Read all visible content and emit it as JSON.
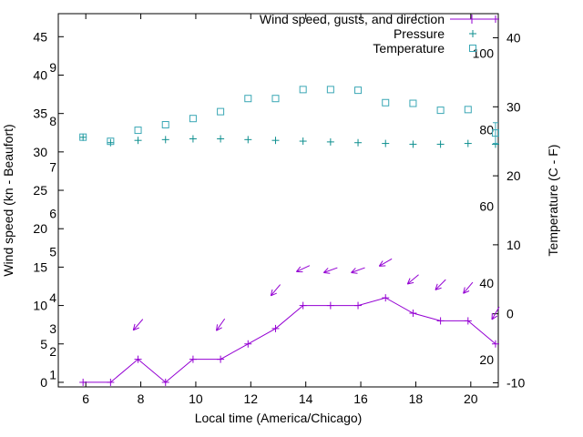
{
  "chart_data": {
    "type": "line",
    "title": "",
    "xlabel": "Local time (America/Chicago)",
    "ylabel_left": "Wind speed (kn - Beaufort)",
    "ylabel_right": "Temperature (C - F)",
    "xlim": [
      5,
      21
    ],
    "ylim_left": [
      -0.6,
      48.0
    ],
    "ylim_right": [
      -10.6,
      43.5
    ],
    "x_ticks": [
      6,
      8,
      10,
      12,
      14,
      16,
      18,
      20
    ],
    "y_ticks_left": [
      0,
      5,
      10,
      15,
      20,
      25,
      30,
      35,
      40,
      45
    ],
    "y_ticks_right": [
      -10,
      0,
      10,
      20,
      30,
      40
    ],
    "beaufort_labels": [
      {
        "text": "1",
        "kn": 1
      },
      {
        "text": "2",
        "kn": 4
      },
      {
        "text": "3",
        "kn": 7
      },
      {
        "text": "4",
        "kn": 11
      },
      {
        "text": "5",
        "kn": 17
      },
      {
        "text": "6",
        "kn": 22
      },
      {
        "text": "7",
        "kn": 28
      },
      {
        "text": "8",
        "kn": 34
      },
      {
        "text": "9",
        "kn": 41
      }
    ],
    "fahrenheit_labels": [
      {
        "text": "20",
        "c": -6.67
      },
      {
        "text": "40",
        "c": 4.44
      },
      {
        "text": "60",
        "c": 15.56
      },
      {
        "text": "80",
        "c": 26.67
      },
      {
        "text": "100",
        "c": 37.78
      }
    ],
    "legend": [
      {
        "label": "Wind speed, gusts, and direction",
        "series": "wind"
      },
      {
        "label": "Pressure",
        "series": "pressure"
      },
      {
        "label": "Temperature",
        "series": "temperature"
      }
    ],
    "series": {
      "wind_speed": {
        "axis": "left",
        "x": [
          5.9,
          6.9,
          7.9,
          8.9,
          9.9,
          10.9,
          11.9,
          12.9,
          13.9,
          14.9,
          15.9,
          16.9,
          17.9,
          18.9,
          19.9,
          20.9
        ],
        "y": [
          0,
          0,
          3,
          0,
          3,
          3,
          5,
          7,
          10,
          10,
          10,
          11,
          9,
          8,
          8,
          5
        ]
      },
      "gusts": {
        "axis": "left",
        "x": [
          7.9,
          10.9,
          12.9,
          13.9,
          14.9,
          15.9,
          16.9,
          17.9,
          18.9,
          19.9,
          20.9
        ],
        "y": [
          7.5,
          7.5,
          12,
          14.8,
          14.6,
          14.6,
          15.6,
          13.4,
          12.7,
          12.3,
          9
        ],
        "angle_deg": [
          229,
          235,
          230,
          205,
          200,
          200,
          210,
          220,
          225,
          230,
          240
        ]
      },
      "pressure": {
        "axis": "left",
        "x": [
          5.9,
          6.9,
          7.9,
          8.9,
          9.9,
          10.9,
          11.9,
          12.9,
          13.9,
          14.9,
          15.9,
          16.9,
          17.9,
          18.9,
          19.9,
          20.9
        ],
        "y": [
          31.9,
          31.2,
          31.5,
          31.6,
          31.7,
          31.7,
          31.6,
          31.5,
          31.4,
          31.3,
          31.2,
          31.1,
          31.0,
          31.0,
          31.1,
          31.0
        ]
      },
      "temperature": {
        "axis": "right",
        "x": [
          5.9,
          6.9,
          7.9,
          8.9,
          9.9,
          10.9,
          11.9,
          12.9,
          13.9,
          14.9,
          15.9,
          16.9,
          17.9,
          18.9,
          19.9,
          20.9
        ],
        "y_c": [
          25.6,
          25.0,
          26.6,
          27.4,
          28.3,
          29.3,
          31.2,
          31.2,
          32.5,
          32.5,
          32.4,
          30.6,
          30.5,
          29.5,
          29.6,
          26.2
        ],
        "last_point_error_c": 1.5
      }
    },
    "colors": {
      "wind": "#9400d3",
      "pressure": "#0e8f8f",
      "temperature": "#3aa7b5",
      "axis": "#000000",
      "background": "#ffffff"
    }
  }
}
